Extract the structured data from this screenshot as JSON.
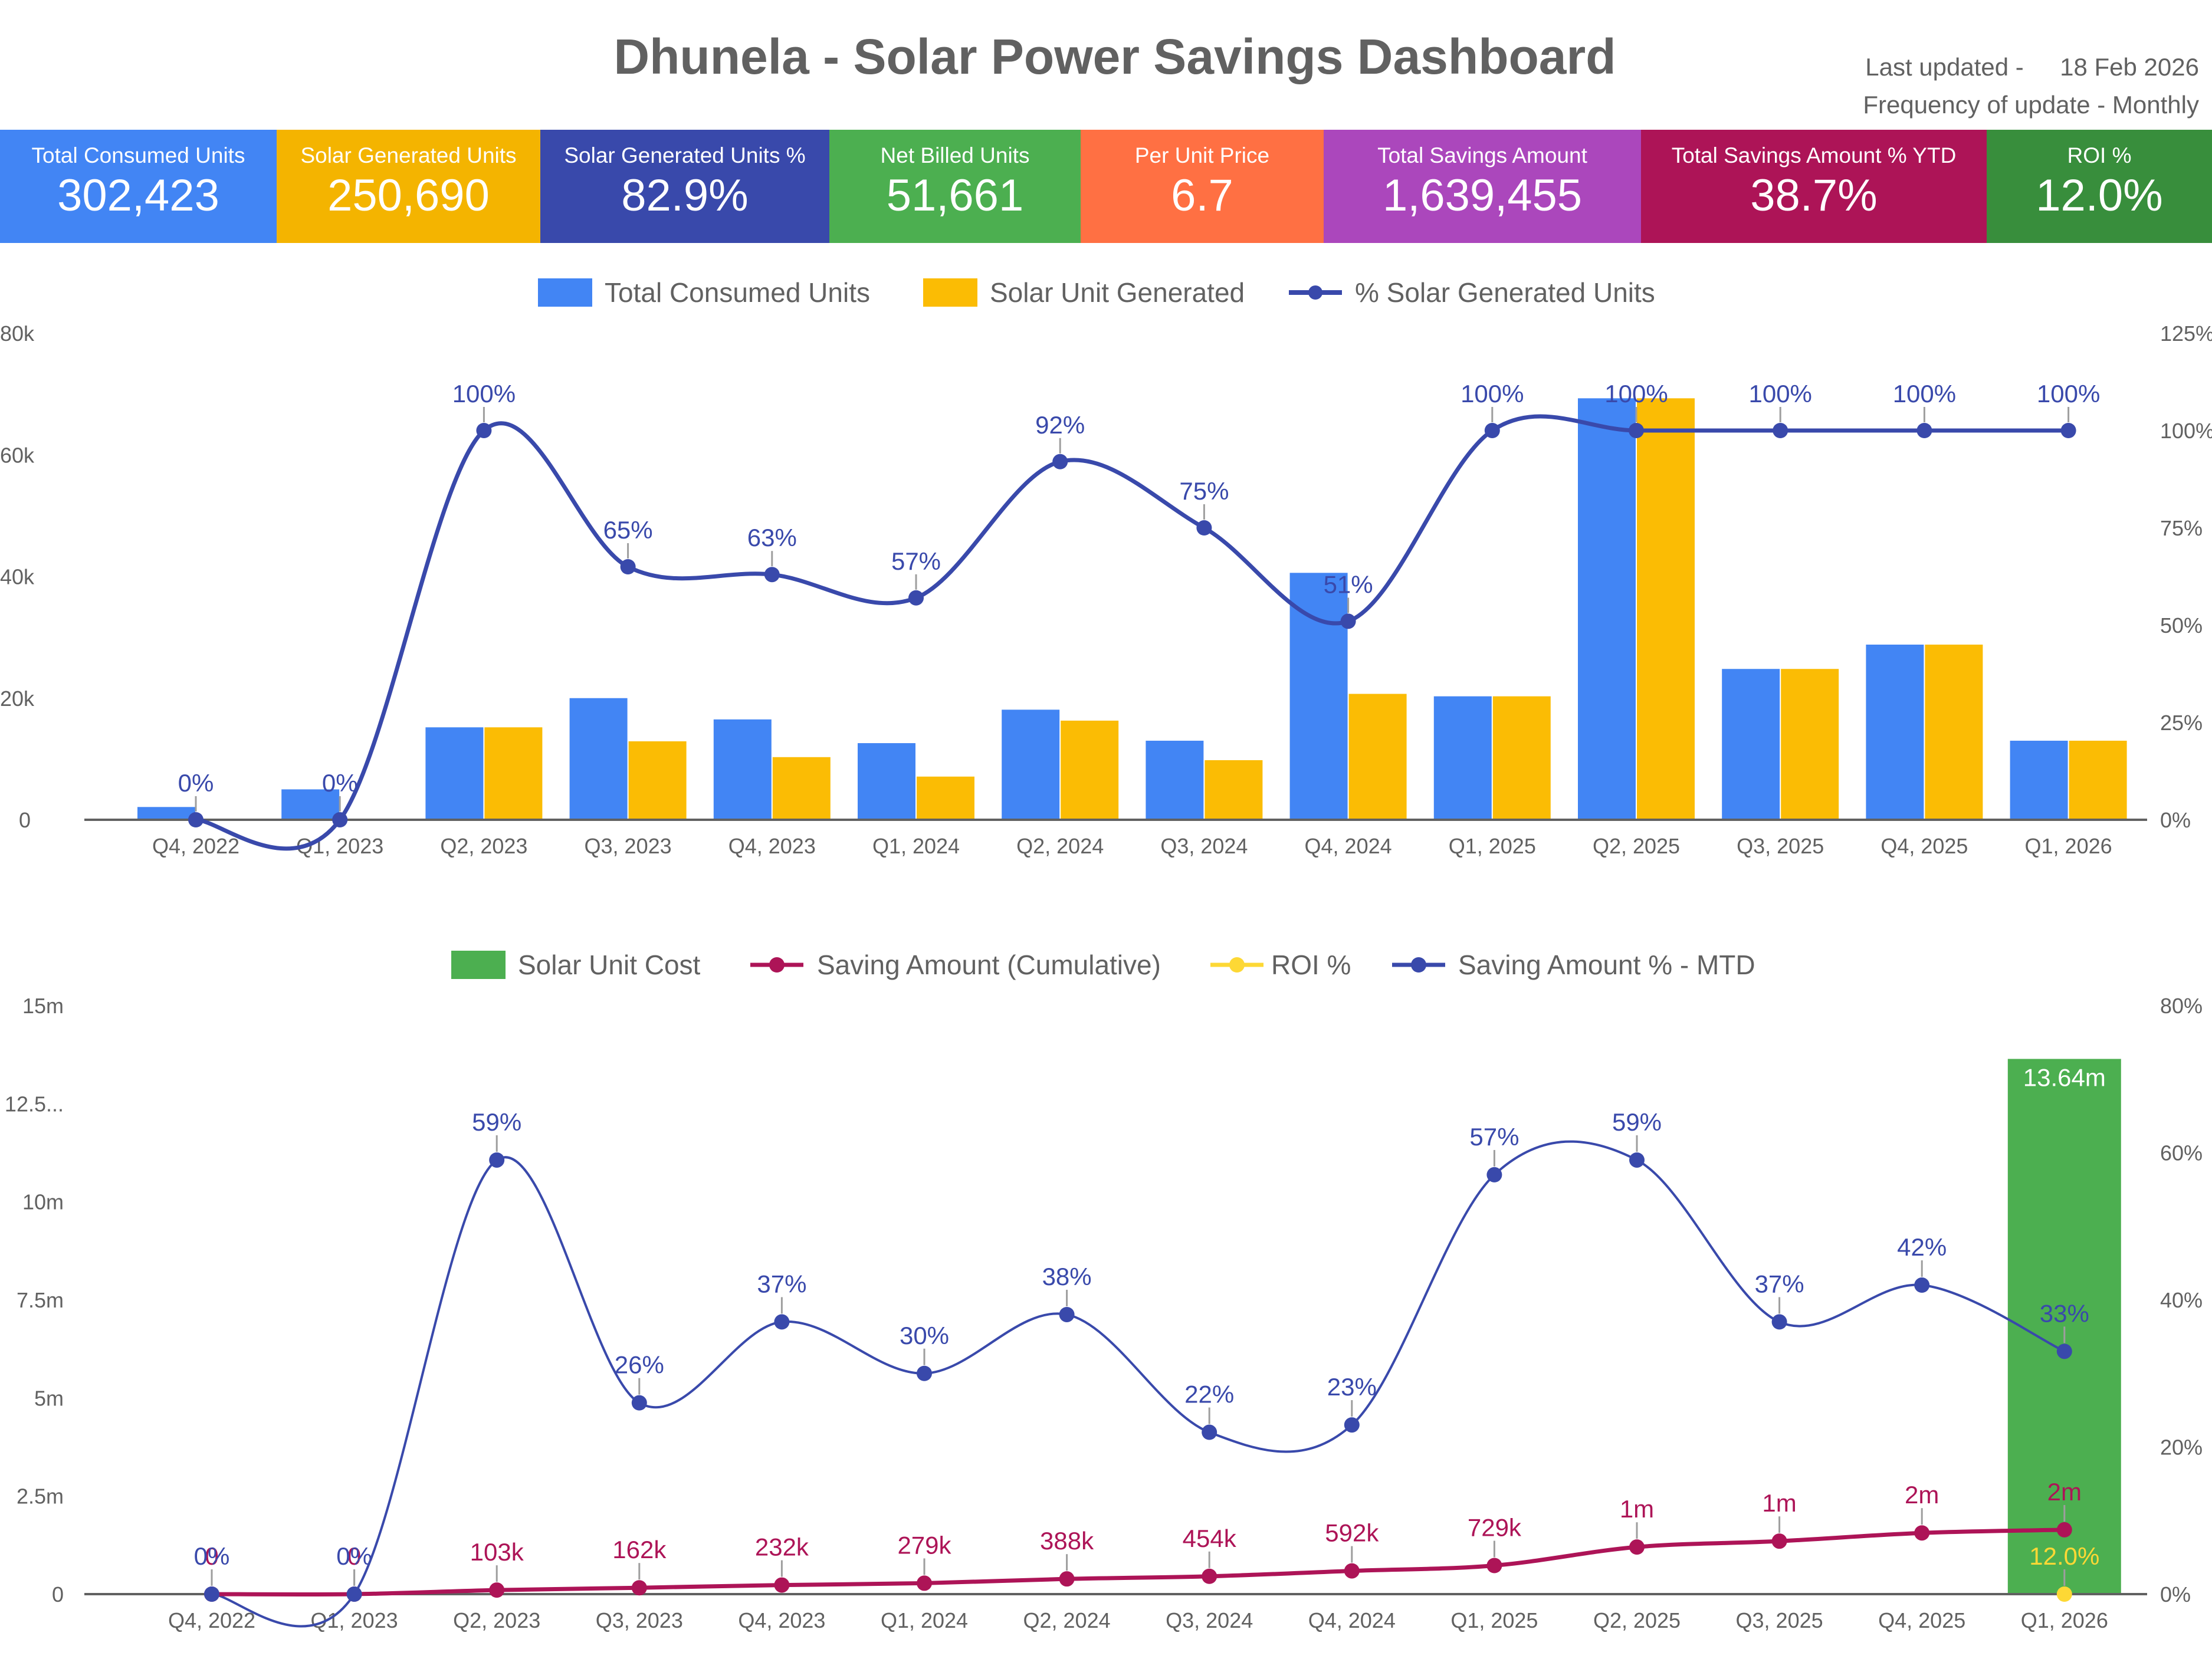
{
  "header": {
    "title": "Dhunela - Solar Power Savings Dashboard",
    "last_updated_label": "Last updated -",
    "last_updated_value": "18 Feb 2026",
    "frequency_label": "Frequency of update - Monthly"
  },
  "kpis": [
    {
      "label": "Total Consumed Units",
      "value": "302,423",
      "color": "#4285f4"
    },
    {
      "label": "Solar Generated Units",
      "value": "250,690",
      "color": "#f4b400"
    },
    {
      "label": "Solar Generated Units %",
      "value": "82.9%",
      "color": "#3949ab"
    },
    {
      "label": "Net Billed Units",
      "value": "51,661",
      "color": "#4caf50"
    },
    {
      "label": "Per Unit Price",
      "value": "6.7",
      "color": "#ff7043"
    },
    {
      "label": "Total Savings Amount",
      "value": "1,639,455",
      "color": "#ab47bc"
    },
    {
      "label": "Total Savings Amount % YTD",
      "value": "38.7%",
      "color": "#ad1457"
    },
    {
      "label": "ROI %",
      "value": "12.0%",
      "color": "#388e3c"
    }
  ],
  "chart_data": [
    {
      "type": "bar",
      "title": "",
      "legend_position": "top",
      "categories": [
        "Q4, 2022",
        "Q1, 2023",
        "Q2, 2023",
        "Q3, 2023",
        "Q4, 2023",
        "Q1, 2024",
        "Q2, 2024",
        "Q3, 2024",
        "Q4, 2024",
        "Q1, 2025",
        "Q2, 2025",
        "Q3, 2025",
        "Q4, 2025",
        "Q1, 2026"
      ],
      "left_axis": {
        "ticks": [
          "0",
          "20k",
          "40k",
          "60k",
          "80k"
        ],
        "range": [
          0,
          80000
        ]
      },
      "right_axis": {
        "ticks": [
          "0%",
          "25%",
          "50%",
          "75%",
          "100%",
          "125%"
        ],
        "range": [
          0,
          125
        ]
      },
      "series": [
        {
          "name": "Total Consumed Units",
          "type": "bar",
          "axis": "left",
          "color": "#4285f4",
          "values": [
            2100,
            5000,
            15200,
            20000,
            16500,
            12600,
            18100,
            13000,
            40600,
            20300,
            69300,
            24800,
            28800,
            13000
          ]
        },
        {
          "name": "Solar Unit Generated",
          "type": "bar",
          "axis": "left",
          "color": "#fbbc04",
          "values": [
            0,
            0,
            15200,
            12900,
            10300,
            7100,
            16300,
            9800,
            20700,
            20300,
            69300,
            24800,
            28800,
            13000
          ]
        },
        {
          "name": "% Solar Generated Units",
          "type": "line",
          "axis": "right",
          "color": "#3949ab",
          "values": [
            0,
            0,
            100,
            65,
            63,
            57,
            92,
            75,
            51,
            100,
            100,
            100,
            100,
            100
          ],
          "labels": [
            "0%",
            "0%",
            "100%",
            "65%",
            "63%",
            "57%",
            "92%",
            "75%",
            "51%",
            "100%",
            "100%",
            "100%",
            "100%",
            "100%"
          ]
        }
      ]
    },
    {
      "type": "bar",
      "title": "",
      "legend_position": "top",
      "categories": [
        "Q4, 2022",
        "Q1, 2023",
        "Q2, 2023",
        "Q3, 2023",
        "Q4, 2023",
        "Q1, 2024",
        "Q2, 2024",
        "Q3, 2024",
        "Q4, 2024",
        "Q1, 2025",
        "Q2, 2025",
        "Q3, 2025",
        "Q4, 2025",
        "Q1, 2026"
      ],
      "left_axis": {
        "ticks": [
          "0",
          "2.5m",
          "5m",
          "7.5m",
          "10m",
          "12.5...",
          "15m"
        ],
        "range": [
          0,
          15000000
        ]
      },
      "right_axis": {
        "ticks": [
          "0%",
          "20%",
          "40%",
          "60%",
          "80%"
        ],
        "range": [
          0,
          80
        ]
      },
      "series": [
        {
          "name": "Solar Unit Cost",
          "type": "bar",
          "axis": "left",
          "color": "#4caf50",
          "values": [
            null,
            null,
            null,
            null,
            null,
            null,
            null,
            null,
            null,
            null,
            null,
            null,
            null,
            13640000
          ],
          "labels": [
            "",
            "",
            "",
            "",
            "",
            "",
            "",
            "",
            "",
            "",
            "",
            "",
            "",
            "13.64m"
          ]
        },
        {
          "name": "Saving Amount (Cumulative)",
          "type": "line",
          "axis": "left",
          "color": "#ad1457",
          "values": [
            0,
            0,
            103000,
            162000,
            232000,
            279000,
            388000,
            454000,
            592000,
            729000,
            1200000,
            1350000,
            1560000,
            1639455
          ],
          "labels": [
            "0",
            "0",
            "103k",
            "162k",
            "232k",
            "279k",
            "388k",
            "454k",
            "592k",
            "729k",
            "1m",
            "1m",
            "2m",
            "2m"
          ]
        },
        {
          "name": "ROI %",
          "type": "line",
          "axis": "left",
          "color": "#fdd835",
          "values": [
            null,
            null,
            null,
            null,
            null,
            null,
            null,
            null,
            null,
            null,
            null,
            null,
            null,
            0.12
          ],
          "labels": [
            "",
            "",
            "",
            "",
            "",
            "",
            "",
            "",
            "",
            "",
            "",
            "",
            "",
            "12.0%"
          ]
        },
        {
          "name": "Saving Amount % - MTD",
          "type": "line",
          "axis": "right",
          "color": "#3949ab",
          "values": [
            0,
            0,
            59,
            26,
            37,
            30,
            38,
            22,
            23,
            57,
            59,
            37,
            42,
            33
          ],
          "labels": [
            "0%",
            "0%",
            "59%",
            "26%",
            "37%",
            "30%",
            "38%",
            "22%",
            "23%",
            "57%",
            "59%",
            "37%",
            "42%",
            "33%"
          ]
        }
      ]
    }
  ]
}
